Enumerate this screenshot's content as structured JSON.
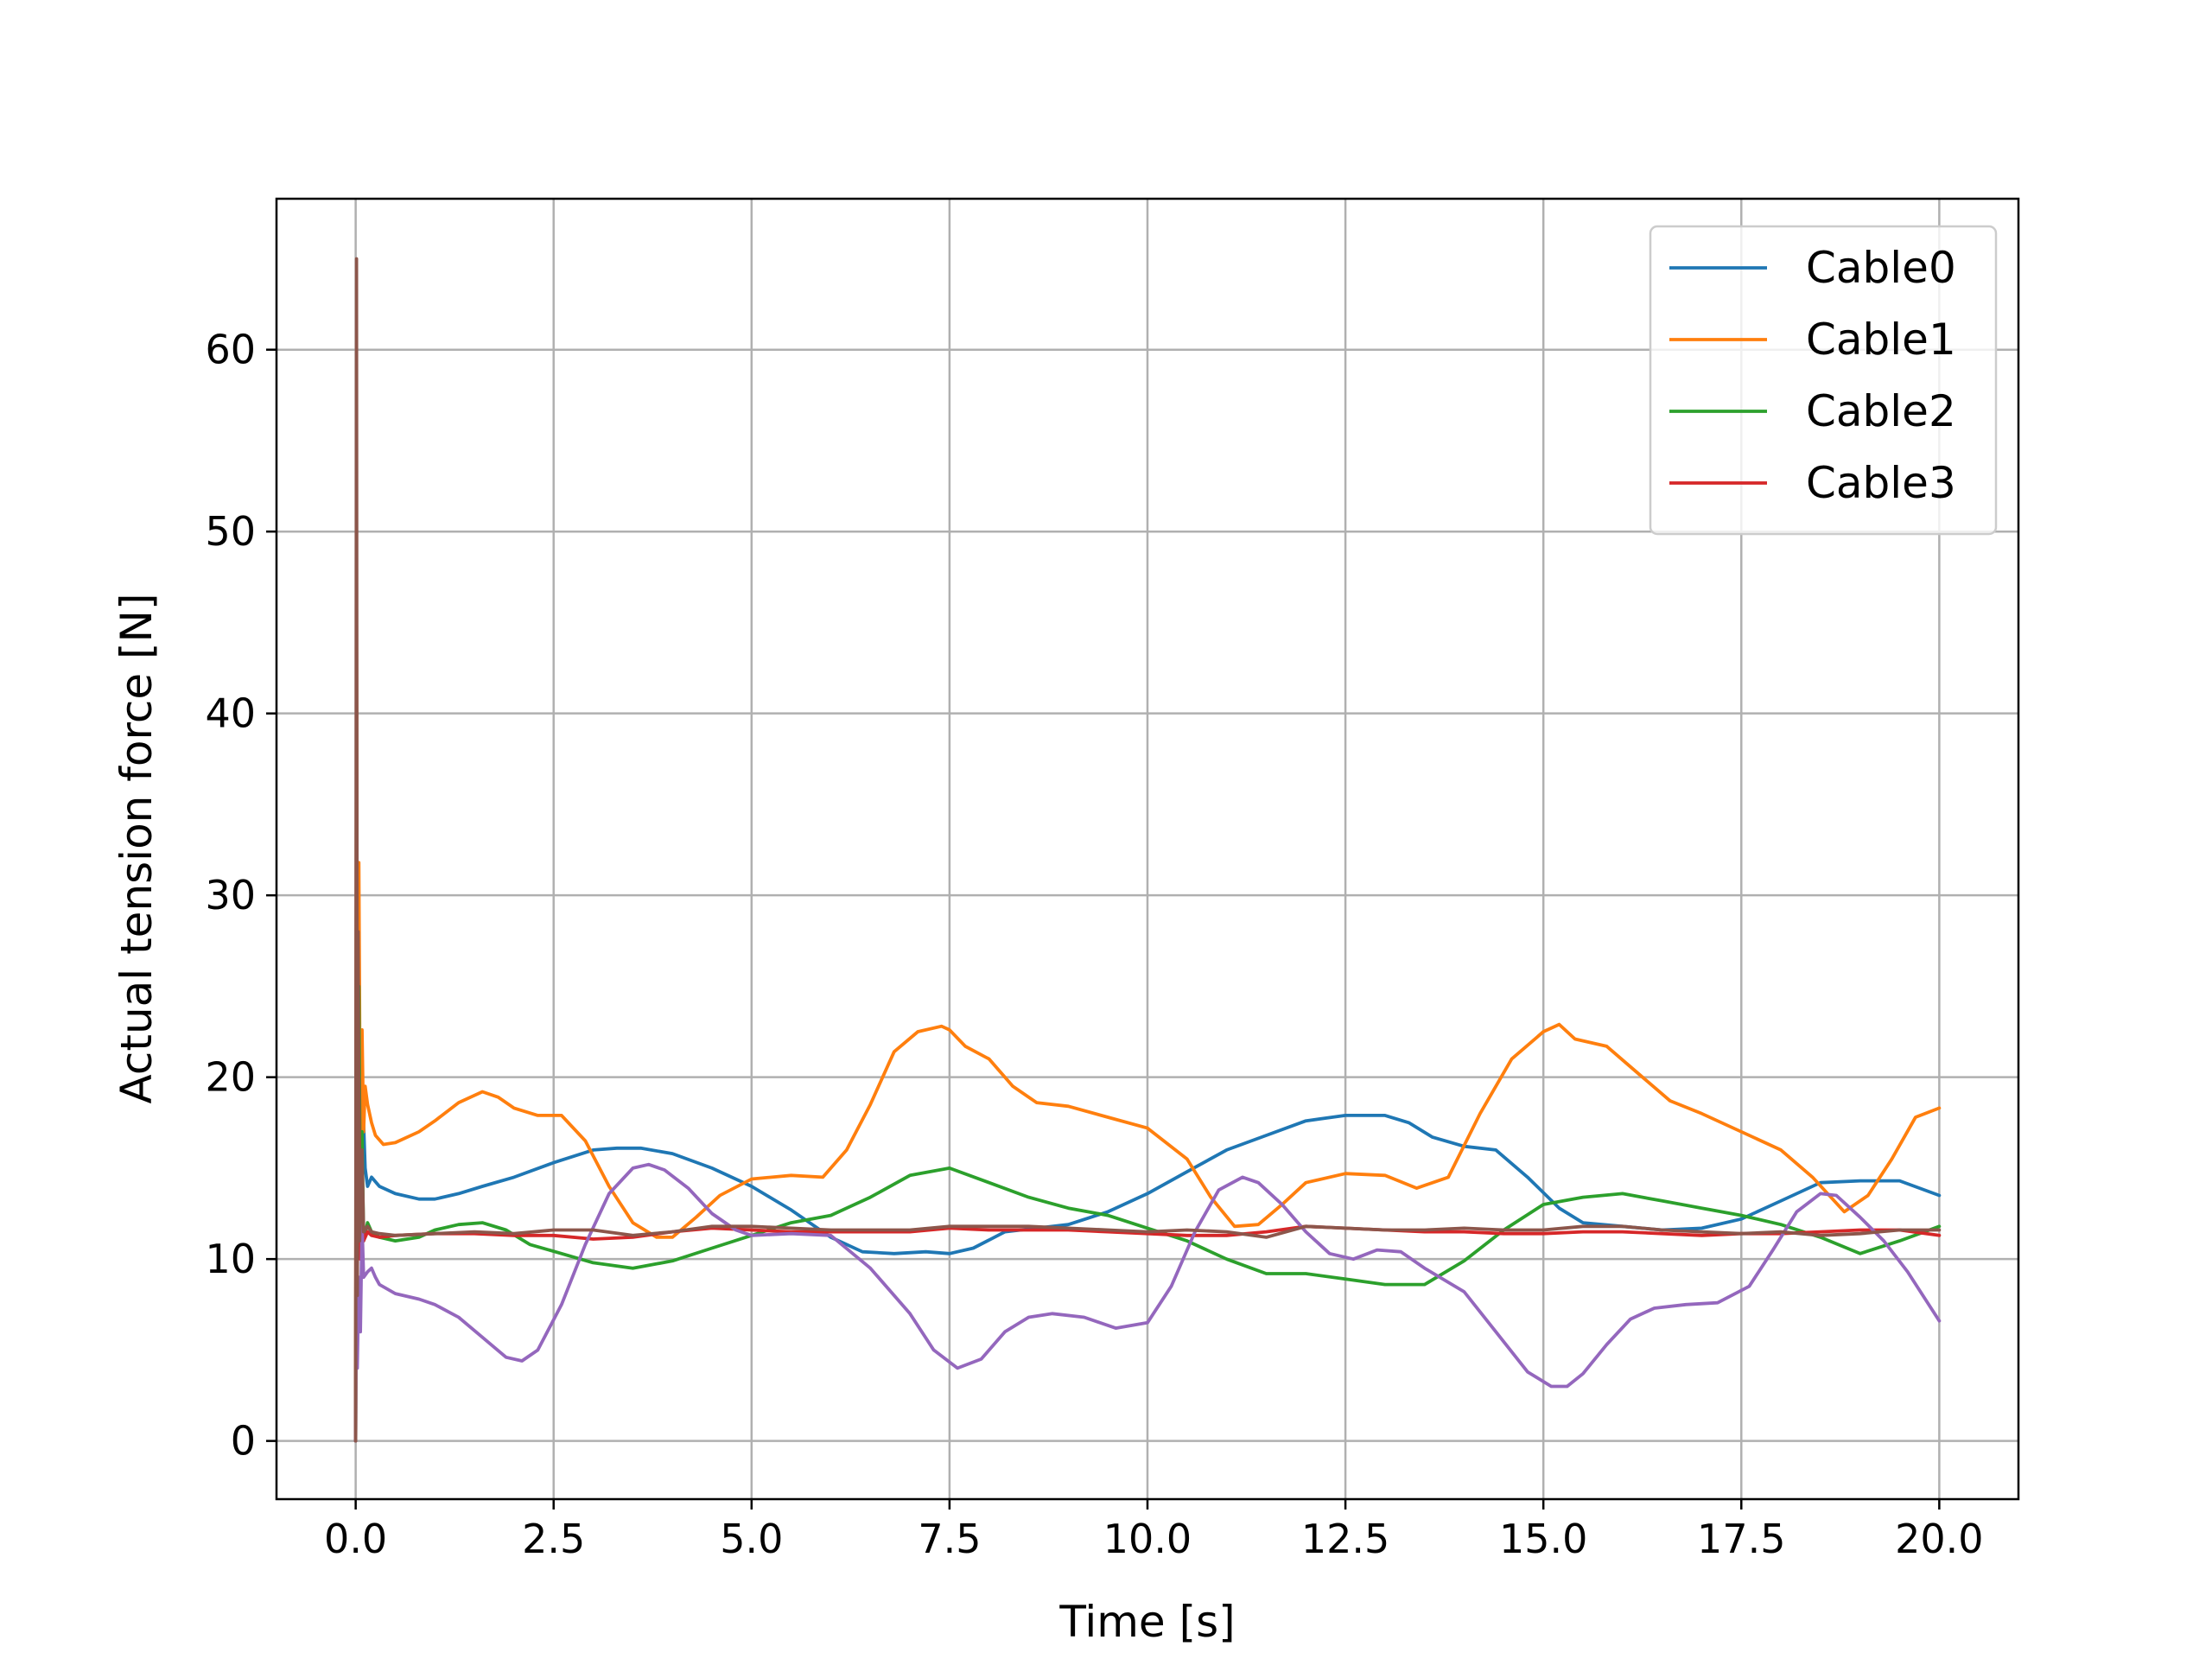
{
  "chart_data": {
    "type": "line",
    "title": "",
    "xlabel": "Time [s]",
    "ylabel": "Actual tension force [N]",
    "xlim": [
      -1.0,
      21.0
    ],
    "ylim": [
      -3.2,
      68.3
    ],
    "xticks": [
      0.0,
      2.5,
      5.0,
      7.5,
      10.0,
      12.5,
      15.0,
      17.5,
      20.0
    ],
    "xtick_labels": [
      "0.0",
      "2.5",
      "5.0",
      "7.5",
      "10.0",
      "12.5",
      "15.0",
      "17.5",
      "20.0"
    ],
    "yticks": [
      0,
      10,
      20,
      30,
      40,
      50,
      60
    ],
    "ytick_labels": [
      "0",
      "10",
      "20",
      "30",
      "40",
      "50",
      "60"
    ],
    "grid": true,
    "legend_position": "top-right",
    "series": [
      {
        "name": "Cable0",
        "color": "#1f77b4",
        "x": [
          0,
          0.01,
          0.02,
          0.03,
          0.05,
          0.08,
          0.12,
          0.15,
          0.2,
          0.3,
          0.5,
          0.8,
          1.0,
          1.3,
          1.6,
          2.0,
          2.5,
          3.0,
          3.3,
          3.6,
          4.0,
          4.5,
          5.0,
          5.5,
          6.0,
          6.4,
          6.8,
          7.2,
          7.5,
          7.8,
          8.2,
          8.6,
          9.0,
          9.5,
          10.0,
          10.5,
          11.0,
          11.5,
          12.0,
          12.5,
          13.0,
          13.3,
          13.6,
          14.0,
          14.4,
          14.8,
          15.2,
          15.5,
          16.0,
          16.5,
          17.0,
          17.5,
          18.0,
          18.5,
          19.0,
          19.5,
          20.0
        ],
        "y": [
          0,
          30,
          8,
          25,
          12,
          20,
          15,
          14,
          14.5,
          14.0,
          13.6,
          13.3,
          13.3,
          13.6,
          14.0,
          14.5,
          15.3,
          16.0,
          16.1,
          16.1,
          15.8,
          15.0,
          14.0,
          12.7,
          11.2,
          10.4,
          10.3,
          10.4,
          10.3,
          10.6,
          11.5,
          11.7,
          11.9,
          12.6,
          13.6,
          14.8,
          16.0,
          16.8,
          17.6,
          17.9,
          17.9,
          17.5,
          16.7,
          16.2,
          16.0,
          14.5,
          12.8,
          12.0,
          11.8,
          11.6,
          11.7,
          12.2,
          13.2,
          14.2,
          14.3,
          14.3,
          13.5
        ]
      },
      {
        "name": "Cable1",
        "color": "#ff7f0e",
        "x": [
          0,
          0.01,
          0.02,
          0.04,
          0.06,
          0.08,
          0.1,
          0.12,
          0.15,
          0.2,
          0.25,
          0.35,
          0.5,
          0.8,
          1.0,
          1.3,
          1.6,
          1.8,
          2.0,
          2.3,
          2.6,
          2.9,
          3.2,
          3.5,
          3.8,
          4.0,
          4.3,
          4.6,
          5.0,
          5.5,
          5.9,
          6.2,
          6.5,
          6.8,
          7.1,
          7.4,
          7.5,
          7.7,
          8.0,
          8.3,
          8.6,
          9.0,
          9.5,
          10.0,
          10.5,
          10.8,
          11.1,
          11.4,
          11.7,
          12.0,
          12.5,
          13.0,
          13.4,
          13.8,
          14.2,
          14.6,
          15.0,
          15.2,
          15.4,
          15.8,
          16.2,
          16.6,
          17.0,
          17.5,
          18.0,
          18.4,
          18.8,
          19.1,
          19.4,
          19.7,
          20.0
        ],
        "y": [
          0,
          45,
          20,
          31.8,
          15,
          22.6,
          17,
          19.5,
          18.5,
          17.5,
          16.8,
          16.3,
          16.4,
          17.0,
          17.6,
          18.6,
          19.2,
          18.9,
          18.3,
          17.9,
          17.9,
          16.5,
          14.0,
          12.0,
          11.2,
          11.2,
          12.3,
          13.5,
          14.4,
          14.6,
          14.5,
          16.0,
          18.5,
          21.4,
          22.5,
          22.8,
          22.6,
          21.7,
          21.0,
          19.5,
          18.6,
          18.4,
          17.8,
          17.2,
          15.5,
          13.4,
          11.8,
          11.9,
          13.0,
          14.2,
          14.7,
          14.6,
          13.9,
          14.5,
          18.0,
          21.0,
          22.5,
          22.9,
          22.1,
          21.7,
          20.2,
          18.7,
          18.0,
          17.0,
          16.0,
          14.5,
          12.6,
          13.5,
          15.5,
          17.8,
          18.3
        ]
      },
      {
        "name": "Cable2",
        "color": "#2ca02c",
        "x": [
          0,
          0.01,
          0.02,
          0.04,
          0.06,
          0.08,
          0.1,
          0.15,
          0.2,
          0.3,
          0.5,
          0.8,
          1.0,
          1.3,
          1.6,
          1.9,
          2.2,
          2.6,
          3.0,
          3.5,
          4.0,
          4.5,
          5.0,
          5.5,
          6.0,
          6.5,
          7.0,
          7.5,
          8.0,
          8.5,
          9.0,
          9.5,
          10.0,
          10.5,
          11.0,
          11.5,
          12.0,
          12.5,
          13.0,
          13.5,
          14.0,
          14.5,
          15.0,
          15.5,
          16.0,
          16.5,
          17.0,
          17.5,
          18.0,
          18.5,
          19.0,
          19.5,
          20.0
        ],
        "y": [
          0,
          30,
          10,
          25,
          12,
          17,
          11,
          12.0,
          11.5,
          11.2,
          11.0,
          11.2,
          11.6,
          11.9,
          12.0,
          11.6,
          10.8,
          10.3,
          9.8,
          9.5,
          9.9,
          10.6,
          11.3,
          12.0,
          12.4,
          13.4,
          14.6,
          15.0,
          14.2,
          13.4,
          12.8,
          12.4,
          11.7,
          11.0,
          10.0,
          9.2,
          9.2,
          8.9,
          8.6,
          8.6,
          9.9,
          11.6,
          13.0,
          13.4,
          13.6,
          13.2,
          12.8,
          12.4,
          11.9,
          11.2,
          10.3,
          11.0,
          11.8
        ]
      },
      {
        "name": "Cable3",
        "color": "#d62728",
        "x": [
          0,
          0.01,
          0.02,
          0.04,
          0.06,
          0.08,
          0.1,
          0.15,
          0.2,
          0.3,
          0.5,
          1.0,
          1.5,
          2.0,
          2.5,
          3.0,
          3.5,
          4.0,
          4.5,
          5.0,
          5.5,
          6.0,
          6.5,
          7.0,
          7.5,
          8.0,
          8.5,
          9.0,
          9.5,
          10.0,
          10.5,
          11.0,
          11.5,
          12.0,
          12.5,
          13.0,
          13.5,
          14.0,
          14.5,
          15.0,
          15.5,
          16.0,
          16.5,
          17.0,
          17.5,
          18.0,
          18.5,
          19.0,
          19.5,
          20.0
        ],
        "y": [
          0,
          37,
          9,
          20,
          10,
          14,
          11,
          11.5,
          11.3,
          11.2,
          11.3,
          11.4,
          11.4,
          11.3,
          11.3,
          11.1,
          11.2,
          11.5,
          11.7,
          11.6,
          11.5,
          11.5,
          11.5,
          11.5,
          11.7,
          11.6,
          11.6,
          11.6,
          11.5,
          11.4,
          11.3,
          11.3,
          11.5,
          11.8,
          11.7,
          11.6,
          11.5,
          11.5,
          11.4,
          11.4,
          11.5,
          11.5,
          11.4,
          11.3,
          11.4,
          11.4,
          11.5,
          11.6,
          11.6,
          11.3
        ]
      },
      {
        "name": "",
        "color": "#9467bd",
        "x": [
          0,
          0.01,
          0.02,
          0.04,
          0.06,
          0.08,
          0.1,
          0.15,
          0.2,
          0.25,
          0.3,
          0.5,
          0.8,
          1.0,
          1.3,
          1.6,
          1.9,
          2.1,
          2.3,
          2.6,
          2.9,
          3.2,
          3.5,
          3.7,
          3.9,
          4.2,
          4.5,
          4.8,
          5.0,
          5.5,
          6.0,
          6.5,
          7.0,
          7.3,
          7.6,
          7.9,
          8.2,
          8.5,
          8.8,
          9.2,
          9.6,
          10.0,
          10.3,
          10.6,
          10.9,
          11.2,
          11.4,
          11.7,
          12.0,
          12.3,
          12.6,
          12.9,
          13.2,
          13.5,
          14.0,
          14.4,
          14.8,
          15.1,
          15.3,
          15.5,
          15.8,
          16.1,
          16.4,
          16.8,
          17.2,
          17.6,
          17.9,
          18.2,
          18.5,
          18.7,
          19.0,
          19.3,
          19.6,
          20.0
        ],
        "y": [
          0,
          12,
          4,
          9,
          6,
          12,
          9,
          9.3,
          9.5,
          9.0,
          8.6,
          8.1,
          7.8,
          7.5,
          6.8,
          5.7,
          4.6,
          4.4,
          5.0,
          7.5,
          10.8,
          13.6,
          15.0,
          15.2,
          14.9,
          13.9,
          12.5,
          11.6,
          11.3,
          11.4,
          11.3,
          9.5,
          7.0,
          5.0,
          4.0,
          4.5,
          6.0,
          6.8,
          7.0,
          6.8,
          6.2,
          6.5,
          8.5,
          11.5,
          13.8,
          14.5,
          14.2,
          13.0,
          11.5,
          10.3,
          10.0,
          10.5,
          10.4,
          9.5,
          8.2,
          6.0,
          3.8,
          3.0,
          3.0,
          3.7,
          5.3,
          6.7,
          7.3,
          7.5,
          7.6,
          8.5,
          10.5,
          12.6,
          13.6,
          13.5,
          12.3,
          11.0,
          9.3,
          6.6
        ]
      },
      {
        "name": "",
        "color": "#8c564b",
        "x": [
          0,
          0.01,
          0.02,
          0.03,
          0.05,
          0.08,
          0.1,
          0.15,
          0.2,
          0.3,
          0.5,
          1.0,
          1.5,
          2.0,
          2.5,
          3.0,
          3.5,
          4.0,
          4.5,
          5.0,
          5.5,
          6.0,
          6.5,
          7.0,
          7.5,
          8.0,
          8.5,
          9.0,
          9.5,
          10.0,
          10.5,
          11.0,
          11.5,
          12.0,
          12.5,
          13.0,
          13.5,
          14.0,
          14.5,
          15.0,
          15.5,
          16.0,
          16.5,
          17.0,
          17.5,
          18.0,
          18.5,
          19.0,
          19.5,
          20.0
        ],
        "y": [
          0,
          65,
          8,
          28,
          11,
          16,
          11.5,
          11.8,
          11.5,
          11.4,
          11.3,
          11.4,
          11.5,
          11.4,
          11.6,
          11.6,
          11.3,
          11.5,
          11.8,
          11.8,
          11.7,
          11.6,
          11.6,
          11.6,
          11.8,
          11.8,
          11.8,
          11.7,
          11.6,
          11.5,
          11.6,
          11.5,
          11.2,
          11.8,
          11.7,
          11.6,
          11.6,
          11.7,
          11.6,
          11.6,
          11.8,
          11.8,
          11.6,
          11.5,
          11.4,
          11.5,
          11.3,
          11.4,
          11.6,
          11.6
        ]
      }
    ]
  }
}
